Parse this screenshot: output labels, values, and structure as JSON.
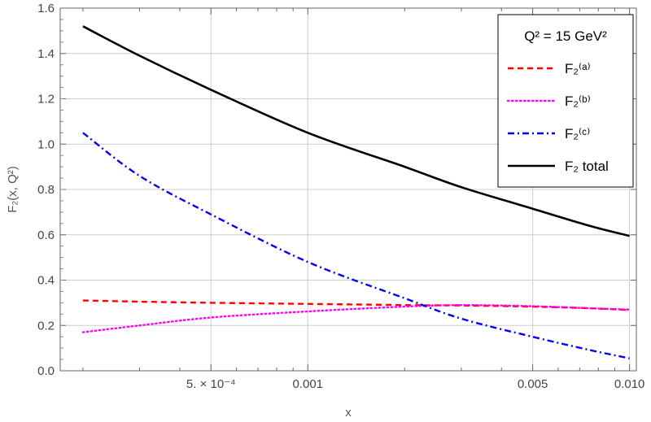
{
  "chart_data": {
    "type": "line",
    "x_scale": "log",
    "xlim": [
      0.00017,
      0.0105
    ],
    "ylim": [
      0,
      1.6
    ],
    "xlabel": "x",
    "ylabel": "F₂(x, Q²)",
    "grid": true,
    "legend_position": "top-right",
    "x_ticks": [
      {
        "value": 0.0005,
        "label": "5. × 10⁻⁴"
      },
      {
        "value": 0.001,
        "label": "0.001"
      },
      {
        "value": 0.005,
        "label": "0.005"
      },
      {
        "value": 0.01,
        "label": "0.010"
      }
    ],
    "y_ticks": [
      {
        "value": 0.0,
        "label": "0.0"
      },
      {
        "value": 0.2,
        "label": "0.2"
      },
      {
        "value": 0.4,
        "label": "0.4"
      },
      {
        "value": 0.6,
        "label": "0.6"
      },
      {
        "value": 0.8,
        "label": "0.8"
      },
      {
        "value": 1.0,
        "label": "1.0"
      },
      {
        "value": 1.2,
        "label": "1.2"
      },
      {
        "value": 1.4,
        "label": "1.4"
      },
      {
        "value": 1.6,
        "label": "1.6"
      }
    ],
    "legend_title": "Q² = 15 GeV²",
    "x": [
      0.0002,
      0.0003,
      0.0005,
      0.001,
      0.002,
      0.003,
      0.005,
      0.0075,
      0.01
    ],
    "series": [
      {
        "name": "F₂⁽ᵃ⁾",
        "color": "#ff0000",
        "dash": "dashed",
        "values": [
          0.31,
          0.305,
          0.3,
          0.295,
          0.29,
          0.288,
          0.283,
          0.276,
          0.268
        ]
      },
      {
        "name": "F₂⁽ᵇ⁾",
        "color": "#ff00ff",
        "dash": "dotted",
        "values": [
          0.17,
          0.2,
          0.235,
          0.262,
          0.283,
          0.29,
          0.285,
          0.276,
          0.27
        ]
      },
      {
        "name": "F₂⁽ᶜ⁾",
        "color": "#0000ff",
        "dash": "dashdot",
        "values": [
          1.05,
          0.86,
          0.69,
          0.48,
          0.32,
          0.23,
          0.15,
          0.092,
          0.055
        ]
      },
      {
        "name": "F₂ total",
        "color": "#000000",
        "dash": "solid",
        "values": [
          1.52,
          1.39,
          1.24,
          1.05,
          0.9,
          0.81,
          0.715,
          0.64,
          0.595
        ]
      }
    ]
  }
}
